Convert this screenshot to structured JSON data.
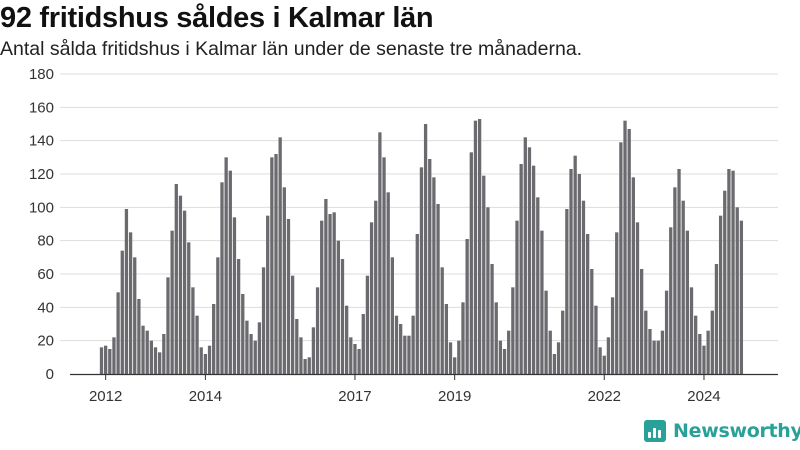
{
  "header": {
    "title": "92 fritidshus såldes i Kalmar län",
    "subtitle": "Antal sålda fritidshus i Kalmar län under de senaste tre månaderna."
  },
  "brand": {
    "name": "Newsworthy",
    "icon": "newsworthy-logo-icon",
    "color": "#2aa198"
  },
  "colors": {
    "bar": "#6b6b6f",
    "highlight": "#1a9e96",
    "grid": "#dddddd",
    "axis": "#333333"
  },
  "chart_data": {
    "type": "bar",
    "title": "92 fritidshus såldes i Kalmar län",
    "subtitle": "Antal sålda fritidshus i Kalmar län under de senaste tre månaderna.",
    "xlabel": "",
    "ylabel": "",
    "ylim": [
      0,
      180
    ],
    "yticks": [
      0,
      20,
      40,
      60,
      80,
      100,
      120,
      140,
      160,
      180
    ],
    "xticks": [
      {
        "label": "2012",
        "index": 1
      },
      {
        "label": "2014",
        "index": 25
      },
      {
        "label": "2017",
        "index": 61
      },
      {
        "label": "2019",
        "index": 85
      },
      {
        "label": "2022",
        "index": 121
      },
      {
        "label": "2024",
        "index": 145
      }
    ],
    "grid": true,
    "legend": "none",
    "highlight": {
      "index": 157,
      "label": "92"
    },
    "values": [
      16,
      17,
      15,
      22,
      49,
      74,
      99,
      85,
      70,
      45,
      29,
      26,
      20,
      16,
      13,
      24,
      58,
      86,
      114,
      107,
      98,
      79,
      52,
      35,
      16,
      12,
      17,
      42,
      70,
      115,
      130,
      122,
      94,
      69,
      48,
      32,
      24,
      20,
      31,
      64,
      95,
      130,
      132,
      142,
      112,
      93,
      59,
      33,
      22,
      9,
      10,
      28,
      52,
      92,
      105,
      96,
      97,
      80,
      69,
      41,
      22,
      18,
      15,
      36,
      59,
      91,
      104,
      145,
      130,
      109,
      70,
      35,
      30,
      23,
      23,
      35,
      84,
      124,
      150,
      129,
      118,
      102,
      64,
      42,
      19,
      10,
      20,
      43,
      81,
      133,
      152,
      153,
      119,
      100,
      66,
      43,
      20,
      15,
      26,
      52,
      92,
      126,
      142,
      136,
      125,
      106,
      86,
      50,
      26,
      12,
      19,
      38,
      99,
      123,
      131,
      120,
      104,
      84,
      63,
      41,
      16,
      11,
      22,
      46,
      85,
      139,
      152,
      147,
      118,
      91,
      63,
      38,
      27,
      20,
      20,
      26,
      50,
      88,
      112,
      123,
      104,
      86,
      52,
      35,
      24,
      17,
      26,
      38,
      66,
      95,
      110,
      123,
      122,
      100,
      92
    ]
  }
}
